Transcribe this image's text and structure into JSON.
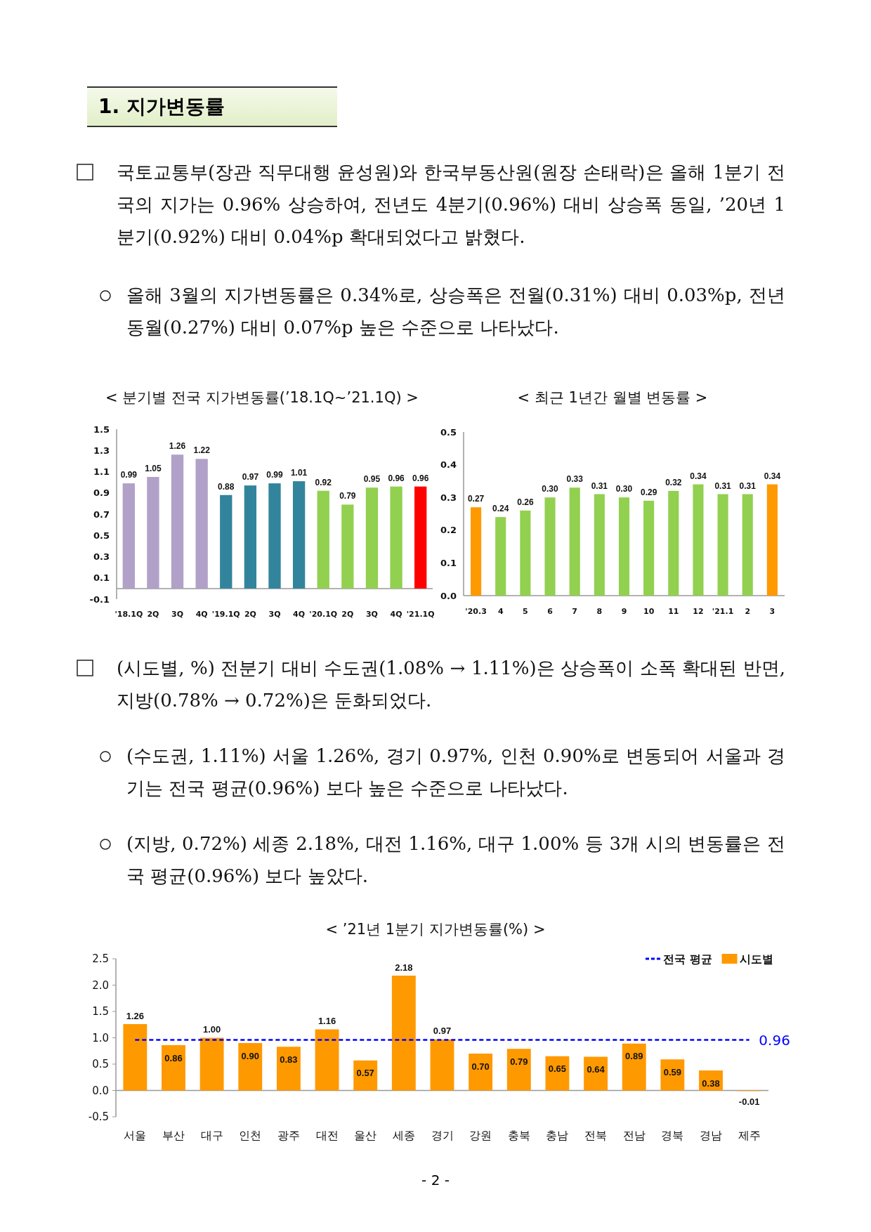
{
  "chart_data": [
    {
      "type": "bar",
      "title": "< 분기별 전국 지가변동률(’18.1Q~’21.1Q) >",
      "categories": [
        "'18.1Q",
        "2Q",
        "3Q",
        "4Q",
        "'19.1Q",
        "2Q",
        "3Q",
        "4Q",
        "'20.1Q",
        "2Q",
        "3Q",
        "4Q",
        "'21.1Q"
      ],
      "values": [
        0.99,
        1.05,
        1.26,
        1.22,
        0.88,
        0.97,
        0.99,
        1.01,
        0.92,
        0.79,
        0.95,
        0.96,
        0.96
      ],
      "colors": [
        "#b1a0c7",
        "#b1a0c7",
        "#b1a0c7",
        "#b1a0c7",
        "#31849b",
        "#31849b",
        "#31849b",
        "#31849b",
        "#92d050",
        "#92d050",
        "#92d050",
        "#92d050",
        "#ff0000"
      ],
      "value_labels": [
        "0.99",
        "1.05",
        "1.26",
        "1.22",
        "0.88",
        "0.97",
        "0.99",
        "1.01",
        "0.92",
        "0.79",
        "0.95",
        "0.96",
        "0.96"
      ],
      "ylim": [
        -0.1,
        1.5
      ],
      "yticks": [
        -0.1,
        0.1,
        0.3,
        0.5,
        0.7,
        0.9,
        1.1,
        1.3,
        1.5
      ],
      "annotations": [
        "1. 지가변동률",
        "국토교통부(장관 직무대행 윤성원)와 한국부동산원(원장 손태락)은 올해 1분기 전국의 지가는 0.96% 상승하여, 전년도 4분기(0.96%) 대비 상승폭 동일, ’20년 1분기(0.92%) 대비 0.04%p 확대되었다고 밝혔다.",
        "올해 3월의 지가변동률은 0.34%로, 상승폭은 전월(0.31%) 대비 0.03%p, 전년 동월(0.27%) 대비 0.07%p 높은 수준으로 나타났다."
      ]
    },
    {
      "type": "bar",
      "title": "< 최근 1년간 월별 변동률 >",
      "categories": [
        "'20.3",
        "4",
        "5",
        "6",
        "7",
        "8",
        "9",
        "10",
        "11",
        "12",
        "'21.1",
        "2",
        "3"
      ],
      "values": [
        0.27,
        0.24,
        0.26,
        0.3,
        0.33,
        0.31,
        0.3,
        0.29,
        0.32,
        0.34,
        0.31,
        0.31,
        0.34
      ],
      "colors": [
        "#ff9900",
        "#92d050",
        "#92d050",
        "#92d050",
        "#92d050",
        "#92d050",
        "#92d050",
        "#92d050",
        "#92d050",
        "#92d050",
        "#92d050",
        "#92d050",
        "#ff9900"
      ],
      "value_labels": [
        "0.27",
        "0.24",
        "0.26",
        "0.30",
        "0.33",
        "0.31",
        "0.30",
        "0.29",
        "0.32",
        "0.34",
        "0.31",
        "0.31",
        "0.34"
      ],
      "ylim": [
        0,
        0.5
      ],
      "yticks": [
        {
          "value": 0,
          "label": "0.0"
        },
        0.1,
        0.2,
        0.3,
        0.4,
        0.5
      ]
    },
    {
      "type": "bar",
      "title": "< ’21년 1분기 지가변동률(%) >",
      "categories": [
        "서울",
        "부산",
        "대구",
        "인천",
        "광주",
        "대전",
        "울산",
        "세종",
        "경기",
        "강원",
        "충북",
        "충남",
        "전북",
        "전남",
        "경북",
        "경남",
        "제주"
      ],
      "series": [
        {
          "name": "전국 평균",
          "type": "line",
          "color": "#0000ff",
          "line_style": "dashed",
          "marker": "none",
          "values": [
            0.96,
            0.96,
            0.96,
            0.96,
            0.96,
            0.96,
            0.96,
            0.96,
            0.96,
            0.96,
            0.96,
            0.96,
            0.96,
            0.96,
            0.96,
            0.96,
            0.96
          ]
        },
        {
          "name": "시도별",
          "color": "#ff9900",
          "values": [
            1.26,
            0.86,
            1.0,
            0.9,
            0.83,
            1.16,
            0.57,
            2.18,
            0.97,
            0.7,
            0.79,
            0.65,
            0.64,
            0.89,
            0.59,
            0.38,
            -0.01
          ],
          "value_labels": [
            "1.26",
            "0.86",
            "1.00",
            "0.90",
            "0.83",
            "1.16",
            "0.57",
            "2.18",
            "0.97",
            "0.70",
            "0.79",
            "0.65",
            "0.64",
            "0.89",
            "0.59",
            "0.38",
            "-0.01"
          ]
        }
      ],
      "ylim": [
        -0.5,
        2.5
      ],
      "yticks": [
        {
          "value": -0.5,
          "label": "-0.5"
        },
        {
          "value": 0,
          "label": "0.0"
        },
        {
          "value": 0.5,
          "label": "0.5"
        },
        {
          "value": 1,
          "label": "1.0"
        },
        {
          "value": 1.5,
          "label": "1.5"
        },
        {
          "value": 2,
          "label": "2.0"
        },
        {
          "value": 2.5,
          "label": "2.5"
        }
      ],
      "legend": "top right",
      "annotations": [
        "(시도별, %) 전분기 대비 수도권(1.08% → 1.11%)은 상승폭이 소폭 확대된 반면, 지방(0.78% → 0.72%)은 둔화되었다.",
        "(수도권, 1.11%) 서울 1.26%, 경기 0.97%, 인천 0.90%로 변동되어 서울과 경기는 전국 평균(0.96%) 보다 높은 수준으로 나타났다.",
        "(지방, 0.72%) 세종 2.18%, 대전 1.16%, 대구 1.00% 등 3개 시의 변동률은 전국 평균(0.96%) 보다 높았다.",
        "0.96",
        "- 2 -"
      ]
    }
  ]
}
